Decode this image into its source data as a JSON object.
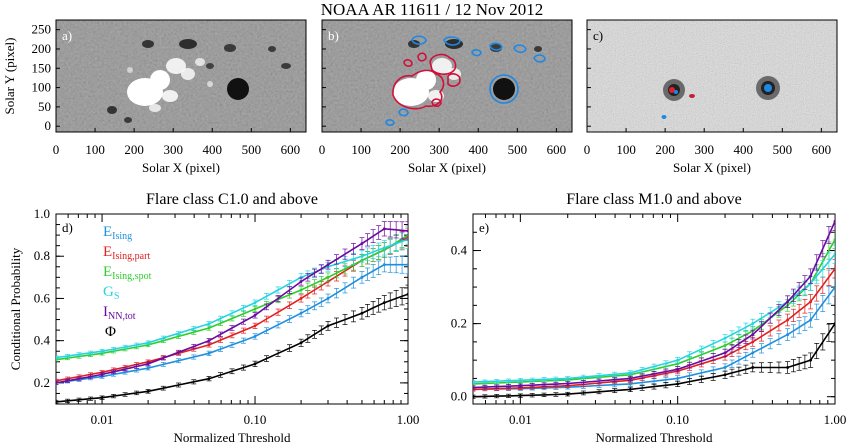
{
  "figure": {
    "title": "NOAA AR 11611 / 12 Nov 2012"
  },
  "maps": {
    "xlabel": "Solar X (pixel)",
    "ylabel": "Solar Y (pixel)",
    "xticks": [
      0,
      100,
      200,
      300,
      400,
      500,
      600
    ],
    "yticks": [
      0,
      50,
      100,
      150,
      200,
      250
    ],
    "xlim": [
      0,
      640
    ],
    "ylim": [
      -15,
      275
    ],
    "panels": [
      {
        "label": "a)",
        "kind": "magnetogram"
      },
      {
        "label": "b)",
        "kind": "magnetogram-contours"
      },
      {
        "label": "c)",
        "kind": "intensity"
      }
    ]
  },
  "colors": {
    "E_Ising": "#1f8fdc",
    "E_Ising_part": "#e02020",
    "E_Ising_spot": "#2ecc2e",
    "G_S": "#25d4e0",
    "I_NN_tot": "#6a0aa0",
    "Phi": "#000000",
    "positive_contour": "#d0103a",
    "negative_contour": "#1e88e5"
  },
  "chart_data": [
    {
      "type": "line",
      "panel_label": "d)",
      "title": "Flare class C1.0 and above",
      "xlabel": "Normalized Threshold",
      "ylabel": "Conditional Probability",
      "xscale": "log",
      "xlim": [
        0.005,
        1.0
      ],
      "ylim": [
        0.1,
        1.0
      ],
      "xticks": [
        "0.01",
        "0.10",
        "1.00"
      ],
      "yticks": [
        "0.2",
        "0.4",
        "0.6",
        "0.8",
        "1.0"
      ],
      "legend_position": "top-left",
      "grid": false,
      "x": [
        0.005,
        0.01,
        0.02,
        0.05,
        0.1,
        0.2,
        0.3,
        0.5,
        0.7,
        1.0
      ],
      "series": [
        {
          "key": "E_Ising",
          "name": "E",
          "sub": "Ising",
          "values": [
            0.2,
            0.23,
            0.27,
            0.34,
            0.42,
            0.53,
            0.6,
            0.7,
            0.76,
            0.76
          ]
        },
        {
          "key": "E_Ising_part",
          "name": "E",
          "sub": "Ising,part",
          "values": [
            0.21,
            0.25,
            0.3,
            0.38,
            0.47,
            0.6,
            0.68,
            0.78,
            0.83,
            0.89
          ]
        },
        {
          "key": "E_Ising_spot",
          "name": "E",
          "sub": "Ising,spot",
          "values": [
            0.31,
            0.34,
            0.38,
            0.46,
            0.55,
            0.64,
            0.7,
            0.78,
            0.83,
            0.9
          ]
        },
        {
          "key": "G_S",
          "name": "G",
          "sub": "S",
          "values": [
            0.32,
            0.35,
            0.39,
            0.48,
            0.58,
            0.7,
            0.75,
            0.8,
            0.84,
            0.88
          ]
        },
        {
          "key": "I_NN_tot",
          "name": "I",
          "sub": "NN,tot",
          "values": [
            0.2,
            0.24,
            0.29,
            0.4,
            0.52,
            0.68,
            0.76,
            0.86,
            0.93,
            0.92
          ]
        },
        {
          "key": "Phi",
          "name": "Φ",
          "sub": "",
          "values": [
            0.11,
            0.13,
            0.16,
            0.22,
            0.29,
            0.39,
            0.47,
            0.53,
            0.58,
            0.62
          ]
        }
      ]
    },
    {
      "type": "line",
      "panel_label": "e)",
      "title": "Flare class M1.0 and above",
      "xlabel": "Normalized Threshold",
      "ylabel": "",
      "xscale": "log",
      "xlim": [
        0.005,
        1.0
      ],
      "ylim": [
        -0.02,
        0.5
      ],
      "xticks": [
        "0.01",
        "0.10",
        "1.00"
      ],
      "yticks": [
        "0.0",
        "0.2",
        "0.4"
      ],
      "grid": false,
      "x": [
        0.005,
        0.01,
        0.02,
        0.05,
        0.1,
        0.2,
        0.3,
        0.5,
        0.7,
        1.0
      ],
      "series": [
        {
          "key": "E_Ising",
          "values": [
            0.02,
            0.022,
            0.026,
            0.035,
            0.05,
            0.08,
            0.12,
            0.17,
            0.21,
            0.3
          ]
        },
        {
          "key": "E_Ising_part",
          "values": [
            0.02,
            0.024,
            0.03,
            0.045,
            0.07,
            0.11,
            0.15,
            0.21,
            0.26,
            0.35
          ]
        },
        {
          "key": "E_Ising_spot",
          "values": [
            0.035,
            0.04,
            0.046,
            0.06,
            0.09,
            0.14,
            0.18,
            0.25,
            0.31,
            0.43
          ]
        },
        {
          "key": "G_S",
          "values": [
            0.04,
            0.045,
            0.05,
            0.065,
            0.1,
            0.16,
            0.2,
            0.26,
            0.31,
            0.39
          ]
        },
        {
          "key": "I_NN_tot",
          "values": [
            0.025,
            0.03,
            0.036,
            0.05,
            0.075,
            0.12,
            0.17,
            0.26,
            0.33,
            0.48
          ]
        },
        {
          "key": "Phi",
          "values": [
            0.0,
            0.003,
            0.007,
            0.02,
            0.035,
            0.06,
            0.08,
            0.08,
            0.1,
            0.2
          ]
        }
      ]
    }
  ]
}
